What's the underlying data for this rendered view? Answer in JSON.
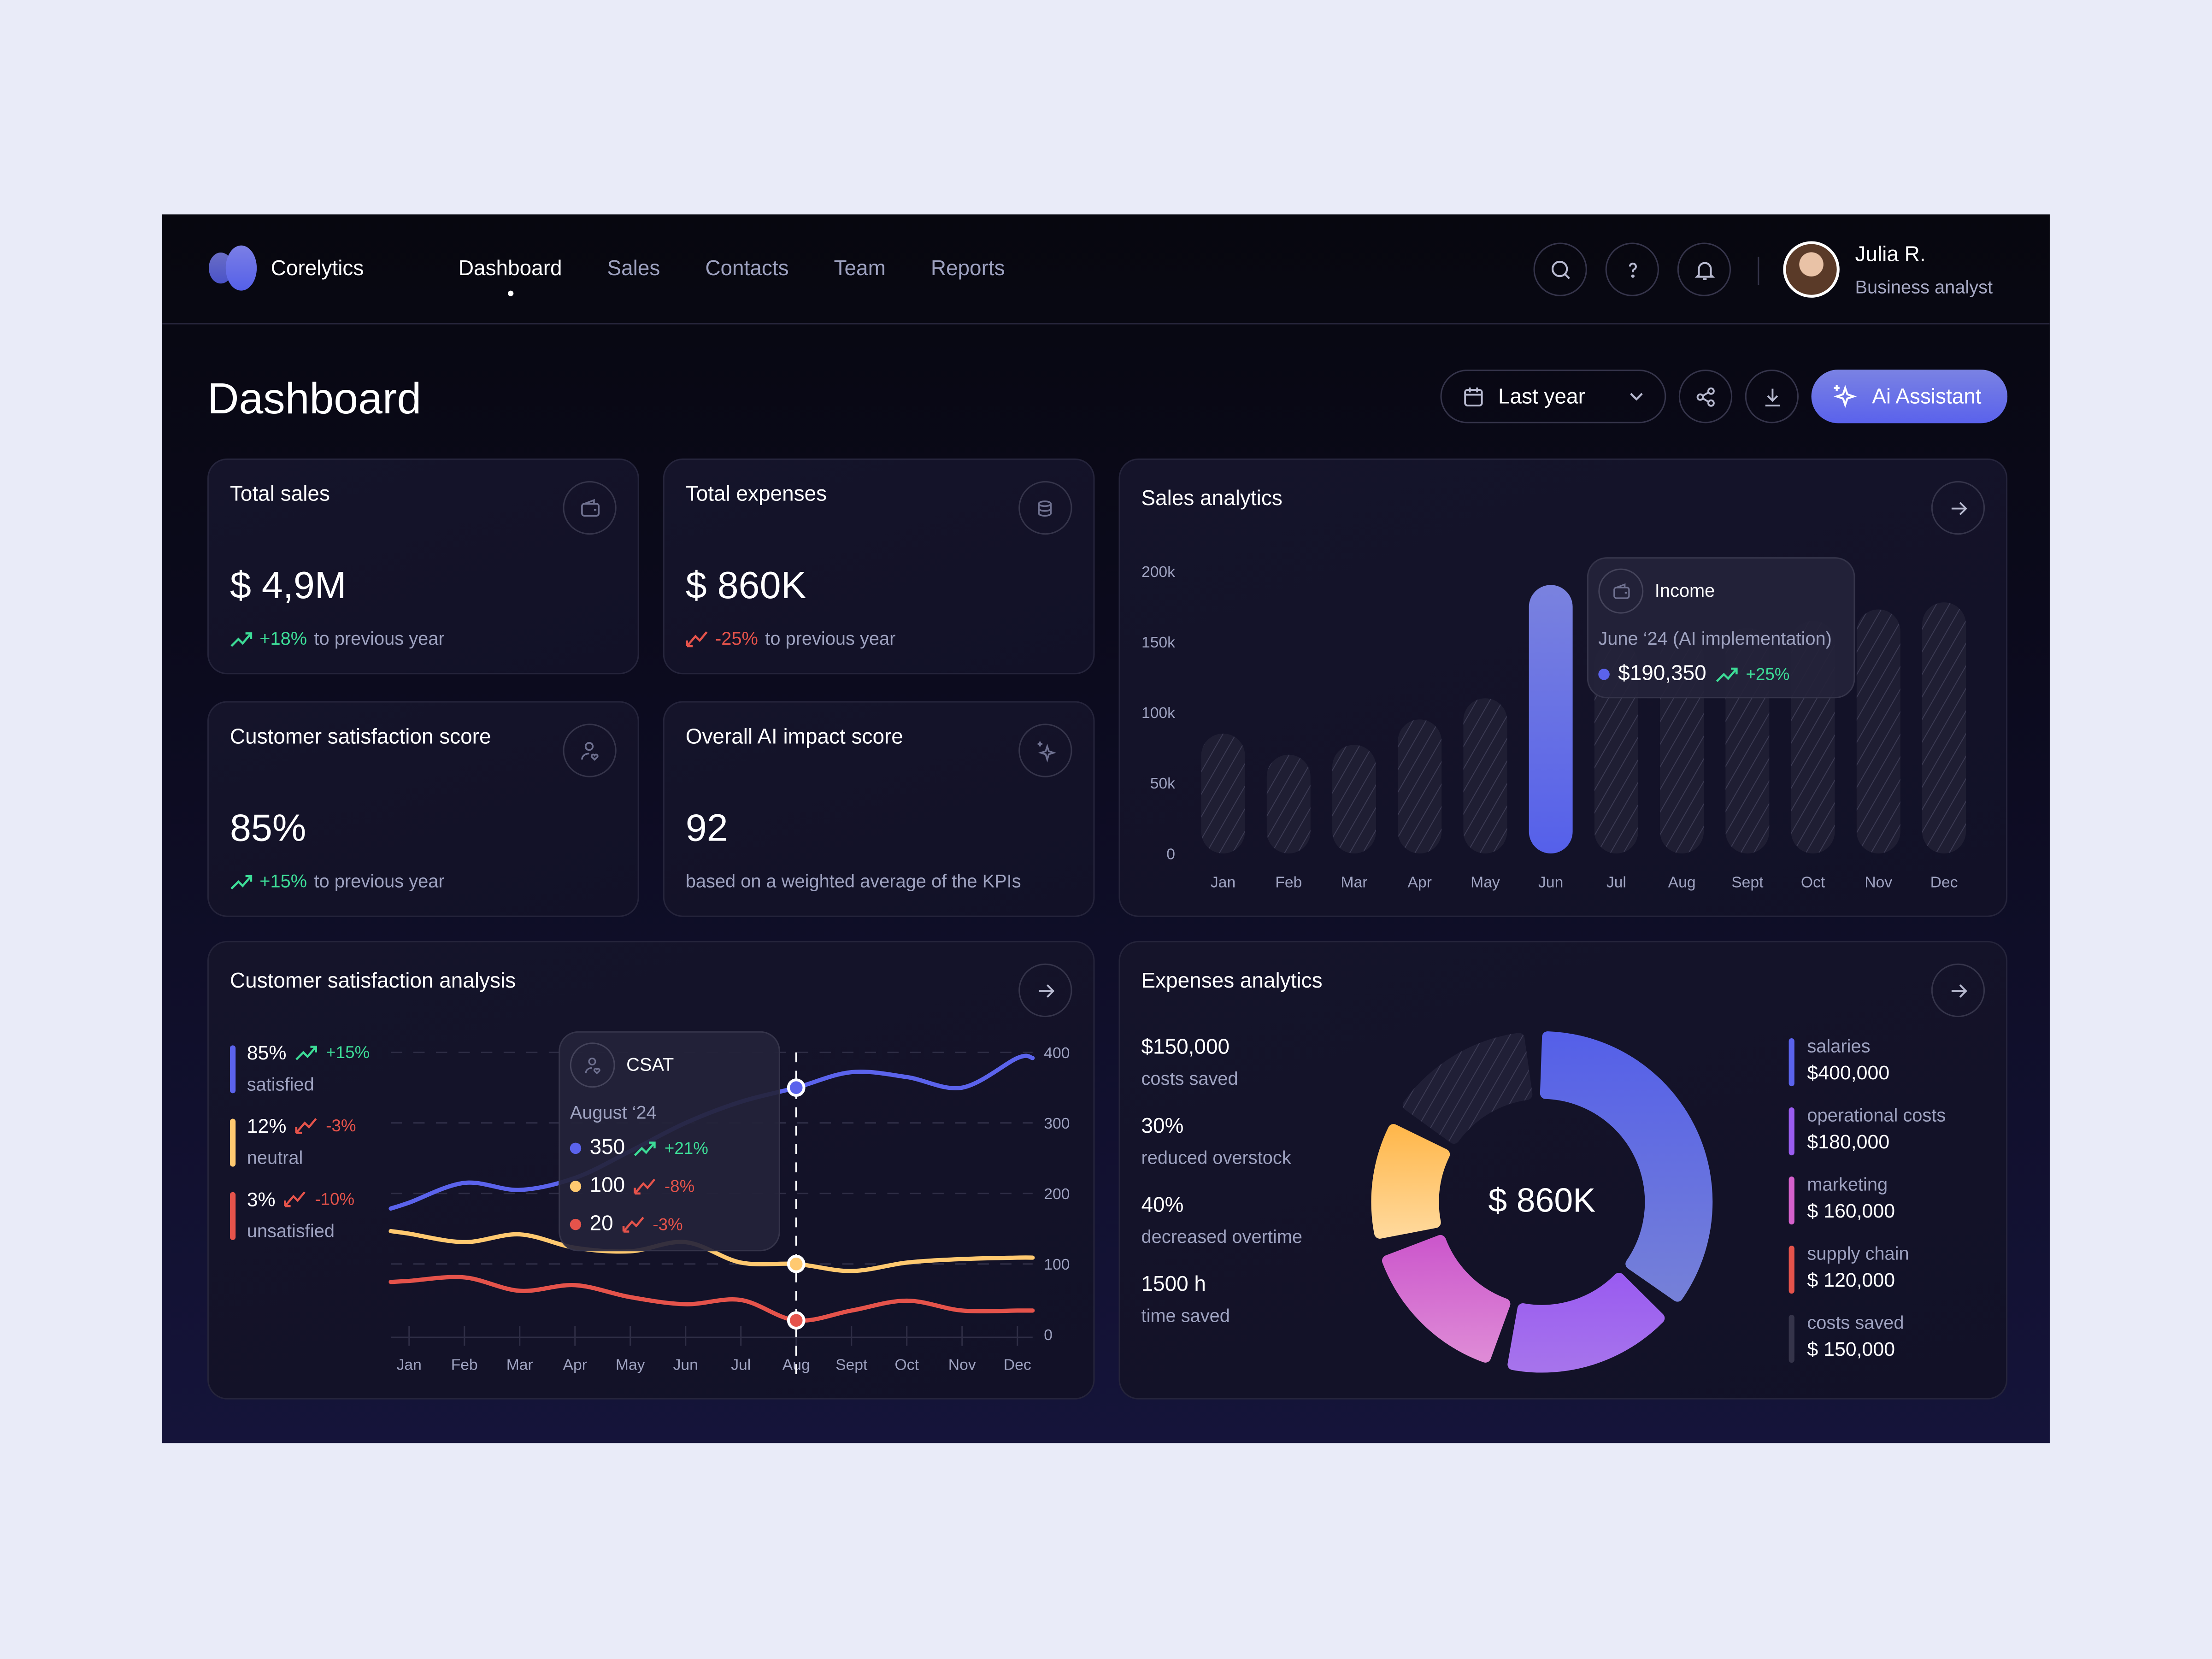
{
  "header": {
    "brand": "Corelytics",
    "nav": [
      "Dashboard",
      "Sales",
      "Contacts",
      "Team",
      "Reports"
    ],
    "active_nav": "Dashboard",
    "icons": [
      "search-icon",
      "help-icon",
      "bell-icon"
    ],
    "user": {
      "name": "Julia R.",
      "role": "Business analyst"
    }
  },
  "toolbar": {
    "title": "Dashboard",
    "period": "Last year",
    "ai_label": "Ai Assistant",
    "accent": "#5b63ec"
  },
  "kpis": [
    {
      "title": "Total sales",
      "value": "$ 4,9M",
      "delta": "+18%",
      "note": "to previous year",
      "trend": "up",
      "icon": "wallet-icon"
    },
    {
      "title": "Total expenses",
      "value": "$ 860K",
      "delta": "-25%",
      "note": "to previous year",
      "trend": "down",
      "icon": "coins-icon"
    },
    {
      "title": "Customer satisfaction score",
      "value": "85%",
      "delta": "+15%",
      "note": "to previous year",
      "trend": "up",
      "icon": "user-heart-icon"
    },
    {
      "title": "Overall AI impact score",
      "value": "92",
      "note": "based on a weighted average of the KPIs",
      "icon": "sparkle-icon"
    }
  ],
  "colors": {
    "up": "#3ddc97",
    "down": "#e5534b",
    "satisfied": "#5b63ec",
    "neutral": "#ffc970",
    "unsatisfied": "#e5534b"
  },
  "chart_data": [
    {
      "type": "bar",
      "title": "Sales analytics",
      "categories": [
        "Jan",
        "Feb",
        "Mar",
        "Apr",
        "May",
        "Jun",
        "Jul",
        "Aug",
        "Sept",
        "Oct",
        "Nov",
        "Dec"
      ],
      "values": [
        85000,
        70000,
        77000,
        95000,
        110000,
        190350,
        150000,
        155000,
        160000,
        165000,
        173000,
        178000
      ],
      "highlight": "Jun",
      "ylim": [
        0,
        200000
      ],
      "yticks": [
        "0",
        "50k",
        "100k",
        "150k",
        "200k"
      ],
      "tooltip": {
        "title": "Income",
        "subtitle": "June ‘24 (AI implementation)",
        "value": "$190,350",
        "delta": "+25%"
      }
    },
    {
      "type": "line",
      "title": "Customer satisfaction analysis",
      "categories": [
        "Jan",
        "Feb",
        "Mar",
        "Apr",
        "May",
        "Jun",
        "Jul",
        "Aug",
        "Sept",
        "Oct",
        "Nov",
        "Dec"
      ],
      "ylim": [
        0,
        400
      ],
      "yticks": [
        "0",
        "100",
        "200",
        "300",
        "400"
      ],
      "highlight": "Aug",
      "series": [
        {
          "name": "satisfied",
          "values": [
            187,
            215,
            205,
            222,
            260,
            300,
            330,
            350,
            372,
            365,
            350,
            392
          ]
        },
        {
          "name": "neutral",
          "values": [
            143,
            131,
            142,
            123,
            118,
            131,
            102,
            100,
            90,
            102,
            107,
            109
          ]
        },
        {
          "name": "unsatisfied",
          "values": [
            76,
            81,
            62,
            70,
            53,
            43,
            49,
            20,
            34,
            48,
            34,
            34
          ]
        }
      ],
      "legend": [
        {
          "pct": "85%",
          "delta": "+15%",
          "label": "satisfied",
          "trend": "up"
        },
        {
          "pct": "12%",
          "delta": "-3%",
          "label": "neutral",
          "trend": "down"
        },
        {
          "pct": "3%",
          "delta": "-10%",
          "label": "unsatisfied",
          "trend": "down"
        }
      ],
      "tooltip": {
        "title": "CSAT",
        "subtitle": "August ‘24",
        "rows": [
          {
            "value": "350",
            "delta": "+21%",
            "trend": "up"
          },
          {
            "value": "100",
            "delta": "-8%",
            "trend": "down"
          },
          {
            "value": "20",
            "delta": "-3%",
            "trend": "down"
          }
        ]
      }
    },
    {
      "type": "pie",
      "title": "Expenses analytics",
      "center_label": "$ 860K",
      "slices": [
        {
          "name": "salaries",
          "label": "$400,000",
          "value": 400000,
          "color": "#5b63ec"
        },
        {
          "name": "operational costs",
          "label": "$180,000",
          "value": 180000,
          "color": "#9a5cf0"
        },
        {
          "name": "marketing",
          "label": "$ 160,000",
          "value": 160000,
          "color": "#d560cc"
        },
        {
          "name": "supply chain",
          "label": "$ 120,000",
          "value": 120000,
          "color": "#ffc060",
          "legend_color": "#e5534b"
        },
        {
          "name": "costs saved",
          "label": "$ 150,000",
          "value": 150000,
          "color": "hatched",
          "legend_color": "#35344a"
        }
      ],
      "stats": [
        {
          "value": "$150,000",
          "label": "costs saved"
        },
        {
          "value": "30%",
          "label": "reduced overstock"
        },
        {
          "value": "40%",
          "label": "decreased overtime"
        },
        {
          "value": "1500 h",
          "label": "time saved"
        }
      ]
    }
  ]
}
